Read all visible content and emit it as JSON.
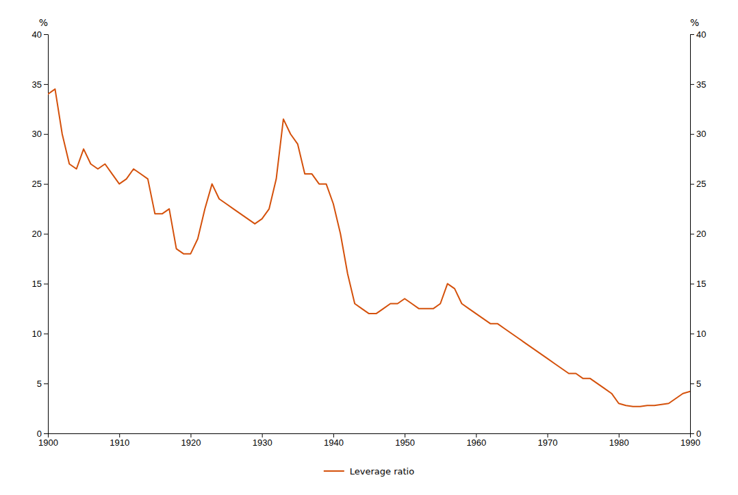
{
  "chart_data": {
    "type": "line",
    "ylabel": "%",
    "y2label": "%",
    "x": [
      1900,
      1901,
      1902,
      1903,
      1904,
      1905,
      1906,
      1907,
      1908,
      1909,
      1910,
      1911,
      1912,
      1913,
      1914,
      1915,
      1916,
      1917,
      1918,
      1919,
      1920,
      1921,
      1922,
      1923,
      1924,
      1925,
      1926,
      1927,
      1928,
      1929,
      1930,
      1931,
      1932,
      1933,
      1934,
      1935,
      1936,
      1937,
      1938,
      1939,
      1940,
      1941,
      1942,
      1943,
      1944,
      1945,
      1946,
      1947,
      1948,
      1949,
      1950,
      1951,
      1952,
      1953,
      1954,
      1955,
      1956,
      1957,
      1958,
      1959,
      1960,
      1961,
      1962,
      1963,
      1964,
      1965,
      1966,
      1967,
      1968,
      1969,
      1970,
      1971,
      1972,
      1973,
      1974,
      1975,
      1976,
      1977,
      1978,
      1979,
      1980,
      1981,
      1982,
      1983,
      1984,
      1985,
      1986,
      1987,
      1988,
      1989,
      1990
    ],
    "series": [
      {
        "name": "Leverage ratio",
        "color": "#D4500A",
        "values": [
          34.0,
          34.5,
          30.0,
          27.0,
          26.5,
          28.5,
          27.0,
          26.5,
          27.0,
          26.0,
          25.0,
          25.5,
          26.5,
          26.0,
          25.5,
          22.0,
          22.0,
          22.5,
          18.5,
          18.0,
          18.0,
          19.5,
          22.5,
          25.0,
          23.5,
          23.0,
          22.5,
          22.0,
          21.5,
          21.0,
          21.5,
          22.5,
          25.5,
          31.5,
          30.0,
          29.0,
          26.0,
          26.0,
          25.0,
          25.0,
          23.0,
          20.0,
          16.0,
          13.0,
          12.5,
          12.0,
          12.0,
          12.5,
          13.0,
          13.0,
          13.5,
          13.0,
          12.5,
          12.5,
          12.5,
          13.0,
          15.0,
          14.5,
          13.0,
          12.5,
          12.0,
          11.5,
          11.0,
          11.0,
          10.5,
          10.0,
          9.5,
          9.0,
          8.5,
          8.0,
          7.5,
          7.0,
          6.5,
          6.0,
          6.0,
          5.5,
          5.5,
          5.0,
          4.5,
          4.0,
          3.0,
          2.8,
          2.7,
          2.7,
          2.8,
          2.8,
          2.9,
          3.0,
          3.5,
          4.0,
          4.2
        ]
      }
    ],
    "xlim": [
      1900,
      1990
    ],
    "xticks": [
      1900,
      1910,
      1920,
      1930,
      1940,
      1950,
      1960,
      1970,
      1980,
      1990
    ],
    "ylim": [
      0,
      40
    ],
    "yticks": [
      0,
      5,
      10,
      15,
      20,
      25,
      30,
      35,
      40
    ],
    "y2lim": [
      0,
      40
    ],
    "y2ticks": [
      0,
      5,
      10,
      15,
      20,
      25,
      30,
      35,
      40
    ],
    "grid": false,
    "legend": "bottom"
  }
}
